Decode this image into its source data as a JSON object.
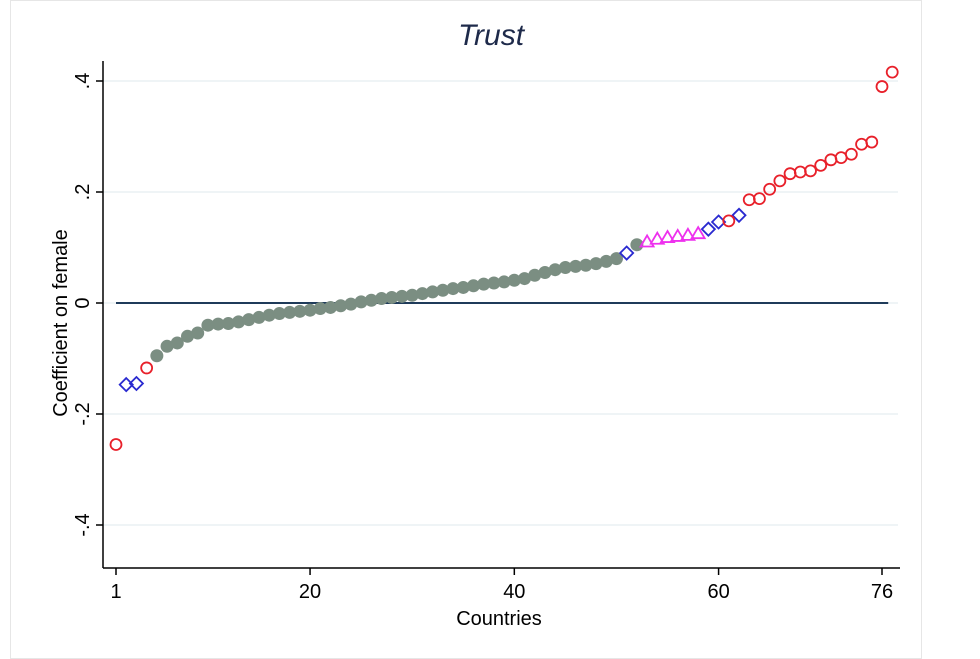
{
  "chart_data": {
    "type": "scatter",
    "title": "Trust",
    "xlabel": "Countries",
    "ylabel": "Coefficient on female",
    "xlim": [
      1,
      76
    ],
    "ylim": [
      -0.47,
      0.43
    ],
    "xticks": [
      {
        "value": 1,
        "label": "1"
      },
      {
        "value": 20,
        "label": "20"
      },
      {
        "value": 40,
        "label": "40"
      },
      {
        "value": 60,
        "label": "60"
      },
      {
        "value": 76,
        "label": "76"
      }
    ],
    "yticks": [
      {
        "value": -0.4,
        "label": "-.4"
      },
      {
        "value": -0.2,
        "label": "-.2"
      },
      {
        "value": 0,
        "label": "0"
      },
      {
        "value": 0.2,
        "label": ".2"
      },
      {
        "value": 0.4,
        "label": ".4"
      }
    ],
    "grid": true,
    "reference_line": 0,
    "colors": {
      "sig_negative": "#e8202a",
      "weak_negative": "#2a2ad0",
      "insignificant": "#7b8e82",
      "weak_positive_triangle": "#ee30ee",
      "weak_positive_diamond": "#2a2ad0",
      "sig_positive": "#e8202a",
      "zero_line": "#1f3b5a",
      "grid": "#eaf0f3",
      "axis": "#000000",
      "title": "#1e2a4a"
    },
    "series": [
      {
        "marker": "circle-open",
        "color_key": "sig_negative",
        "x": [
          1,
          4
        ],
        "y": [
          -0.255,
          -0.117
        ]
      },
      {
        "marker": "diamond-open",
        "color_key": "weak_negative",
        "x": [
          2,
          3
        ],
        "y": [
          -0.147,
          -0.145
        ]
      },
      {
        "marker": "circle-filled",
        "color_key": "insignificant",
        "x": [
          5,
          6,
          7,
          8,
          9,
          10,
          11,
          12,
          13,
          14,
          15,
          16,
          17,
          18,
          19,
          20,
          21,
          22,
          23,
          24,
          25,
          26,
          27,
          28,
          29,
          30,
          31,
          32,
          33,
          34,
          35,
          36,
          37,
          38,
          39,
          40,
          41,
          42,
          43,
          44,
          45,
          46,
          47,
          48,
          49,
          50,
          52
        ],
        "y": [
          -0.095,
          -0.078,
          -0.072,
          -0.06,
          -0.054,
          -0.04,
          -0.038,
          -0.037,
          -0.034,
          -0.03,
          -0.026,
          -0.022,
          -0.019,
          -0.017,
          -0.015,
          -0.013,
          -0.01,
          -0.008,
          -0.005,
          -0.002,
          0.002,
          0.005,
          0.008,
          0.01,
          0.012,
          0.014,
          0.017,
          0.02,
          0.023,
          0.026,
          0.028,
          0.031,
          0.034,
          0.036,
          0.038,
          0.041,
          0.044,
          0.05,
          0.055,
          0.06,
          0.064,
          0.066,
          0.068,
          0.071,
          0.075,
          0.08,
          0.105
        ]
      },
      {
        "marker": "diamond-open",
        "color_key": "weak_negative",
        "x": [
          51
        ],
        "y": [
          0.09
        ]
      },
      {
        "marker": "triangle-open",
        "color_key": "weak_positive_triangle",
        "x": [
          53,
          54,
          55,
          56,
          57,
          58
        ],
        "y": [
          0.11,
          0.115,
          0.118,
          0.12,
          0.122,
          0.125
        ]
      },
      {
        "marker": "diamond-open",
        "color_key": "weak_positive_diamond",
        "x": [
          59,
          60,
          62
        ],
        "y": [
          0.133,
          0.146,
          0.158
        ]
      },
      {
        "marker": "circle-open",
        "color_key": "sig_positive",
        "x": [
          61,
          63,
          64,
          65,
          66,
          67,
          68,
          69,
          70,
          71,
          72,
          73,
          74,
          75,
          76
        ],
        "y": [
          0.148,
          0.186,
          0.188,
          0.205,
          0.22,
          0.233,
          0.236,
          0.238,
          0.248,
          0.258,
          0.262,
          0.268,
          0.286,
          0.29,
          0.39
        ]
      },
      {
        "marker": "circle-open",
        "color_key": "sig_positive",
        "x": [
          77
        ],
        "y": [
          0.416
        ]
      }
    ]
  }
}
